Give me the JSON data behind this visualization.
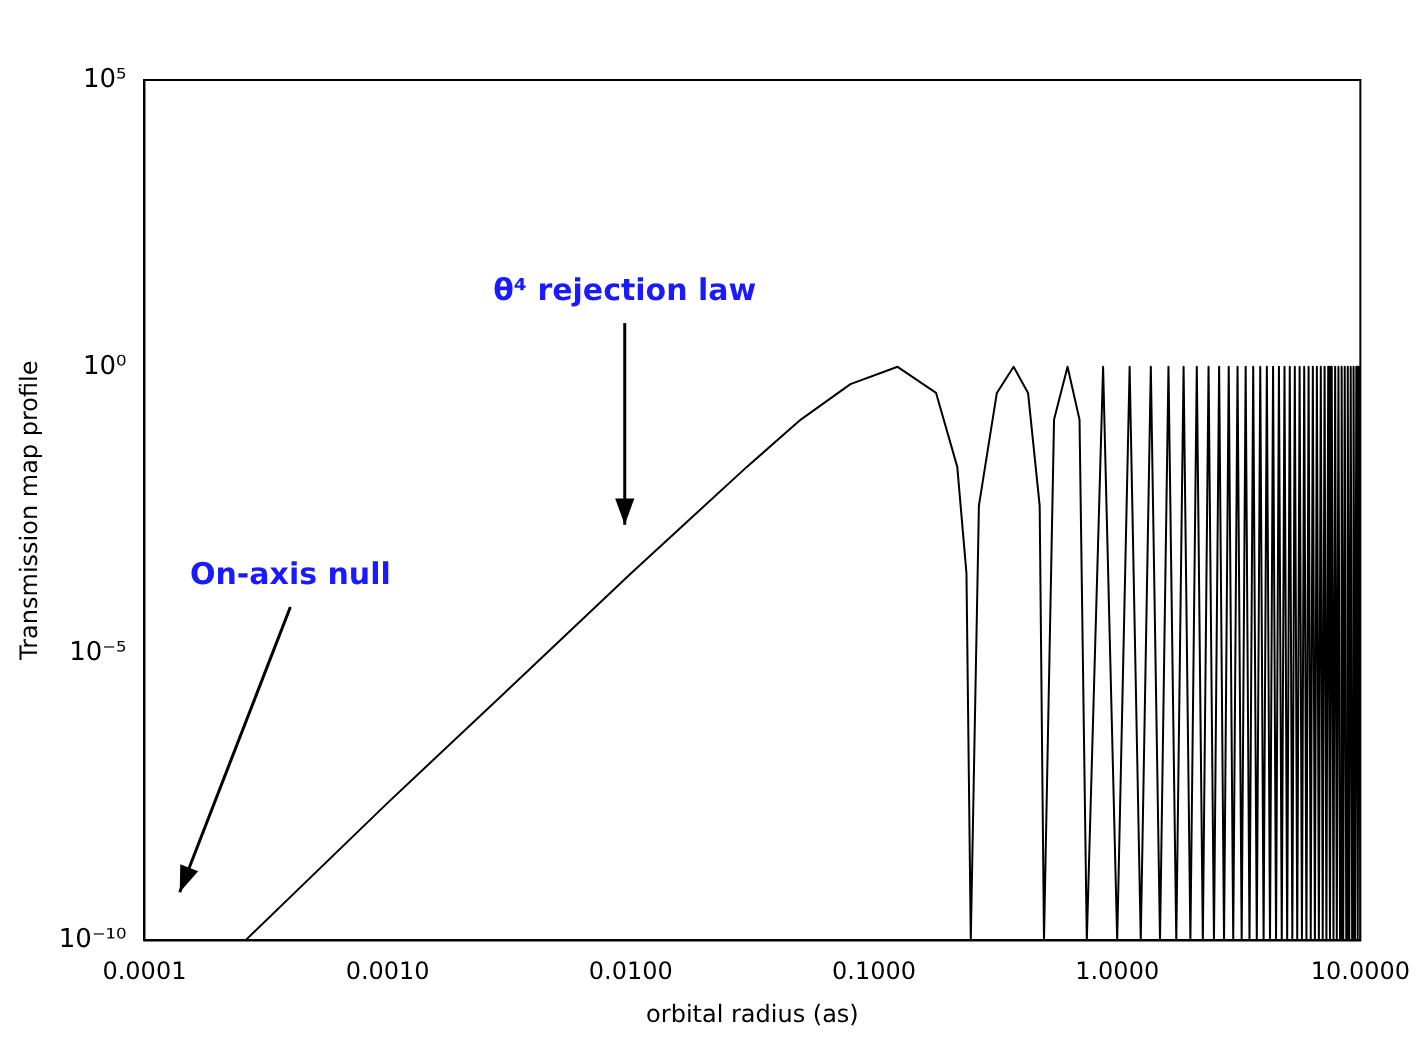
{
  "chart_data": {
    "type": "line",
    "xlabel": "orbital radius (as)",
    "ylabel": "Transmission map profile",
    "x": [
      0.00026,
      0.001,
      0.003,
      0.01,
      0.03,
      0.05,
      0.08,
      0.125,
      0.18,
      0.22,
      0.24,
      0.25,
      0.27,
      0.32,
      0.375,
      0.43,
      0.48,
      0.5,
      0.55,
      0.625,
      0.7,
      0.75,
      0.875,
      1,
      1.125,
      1.25,
      1.375,
      1.5,
      1.625,
      1.75,
      1.875,
      2,
      2.125,
      2.25,
      2.375,
      2.5,
      2.625,
      2.75,
      2.875,
      3,
      3.125,
      3.25,
      3.375,
      3.5,
      3.625,
      3.75,
      3.875,
      4,
      4.125,
      4.25,
      4.375,
      4.5,
      4.625,
      4.75,
      4.875,
      5,
      5.125,
      5.25,
      5.375,
      5.5,
      5.625,
      5.75,
      5.875,
      6,
      6.125,
      6.25,
      6.375,
      6.5,
      6.625,
      6.75,
      6.875,
      7,
      7.125,
      7.25,
      7.375,
      7.5,
      7.625,
      7.75,
      7.875,
      8,
      8.125,
      8.25,
      8.375,
      8.5,
      8.625,
      8.75,
      8.875,
      9,
      9.125,
      9.25,
      9.375,
      9.5,
      9.625,
      9.75,
      9.875,
      10
    ],
    "series": [
      {
        "color": "#000000",
        "values": [
          1e-10,
          2.5e-08,
          2e-06,
          0.00025,
          0.018,
          0.12,
          0.5,
          1,
          0.35,
          0.018,
          0.00025,
          1e-10,
          0.0038,
          0.35,
          1,
          0.35,
          0.0038,
          1e-10,
          0.12,
          1,
          0.12,
          1e-10,
          1,
          1e-10,
          1,
          1e-10,
          1,
          1e-10,
          1,
          1e-10,
          1,
          1e-10,
          1,
          1e-10,
          1,
          1e-10,
          1,
          1e-10,
          1,
          1e-10,
          1,
          1e-10,
          1,
          1e-10,
          1,
          1e-10,
          1,
          1e-10,
          1,
          1e-10,
          1,
          1e-10,
          1,
          1e-10,
          1,
          1e-10,
          1,
          1e-10,
          1,
          1e-10,
          1,
          1e-10,
          1,
          1e-10,
          1,
          1e-10,
          1,
          1e-10,
          1,
          1e-10,
          1,
          1e-10,
          1,
          1e-10,
          1,
          1e-10,
          1,
          1e-10,
          1,
          1e-10,
          1,
          1e-10,
          1,
          1e-10,
          1,
          1e-10,
          1,
          1e-10,
          1,
          1e-10,
          1,
          1e-10,
          1,
          1e-10,
          1,
          1e-10
        ]
      }
    ],
    "xlim": [
      0.0001,
      10
    ],
    "ylim": [
      1e-10,
      100000
    ],
    "log": "xy",
    "grid": false,
    "legend": false,
    "marker": "none",
    "line_style": "solid",
    "xticks": [
      {
        "value": 0.0001,
        "label": "0.0001"
      },
      {
        "value": 0.001,
        "label": "0.0010"
      },
      {
        "value": 0.01,
        "label": "0.0100"
      },
      {
        "value": 0.1,
        "label": "0.1000"
      },
      {
        "value": 1,
        "label": "1.0000"
      },
      {
        "value": 10,
        "label": "10.0000"
      }
    ],
    "yticks": [
      {
        "value": 1e-10,
        "label": "10⁻¹⁰"
      },
      {
        "value": 1e-05,
        "label": "10⁻⁵"
      },
      {
        "value": 1,
        "label": "10⁰"
      },
      {
        "value": 100000,
        "label": "10⁵"
      }
    ],
    "annotations": [
      "θ⁴ rejection law",
      "On-axis null"
    ]
  }
}
